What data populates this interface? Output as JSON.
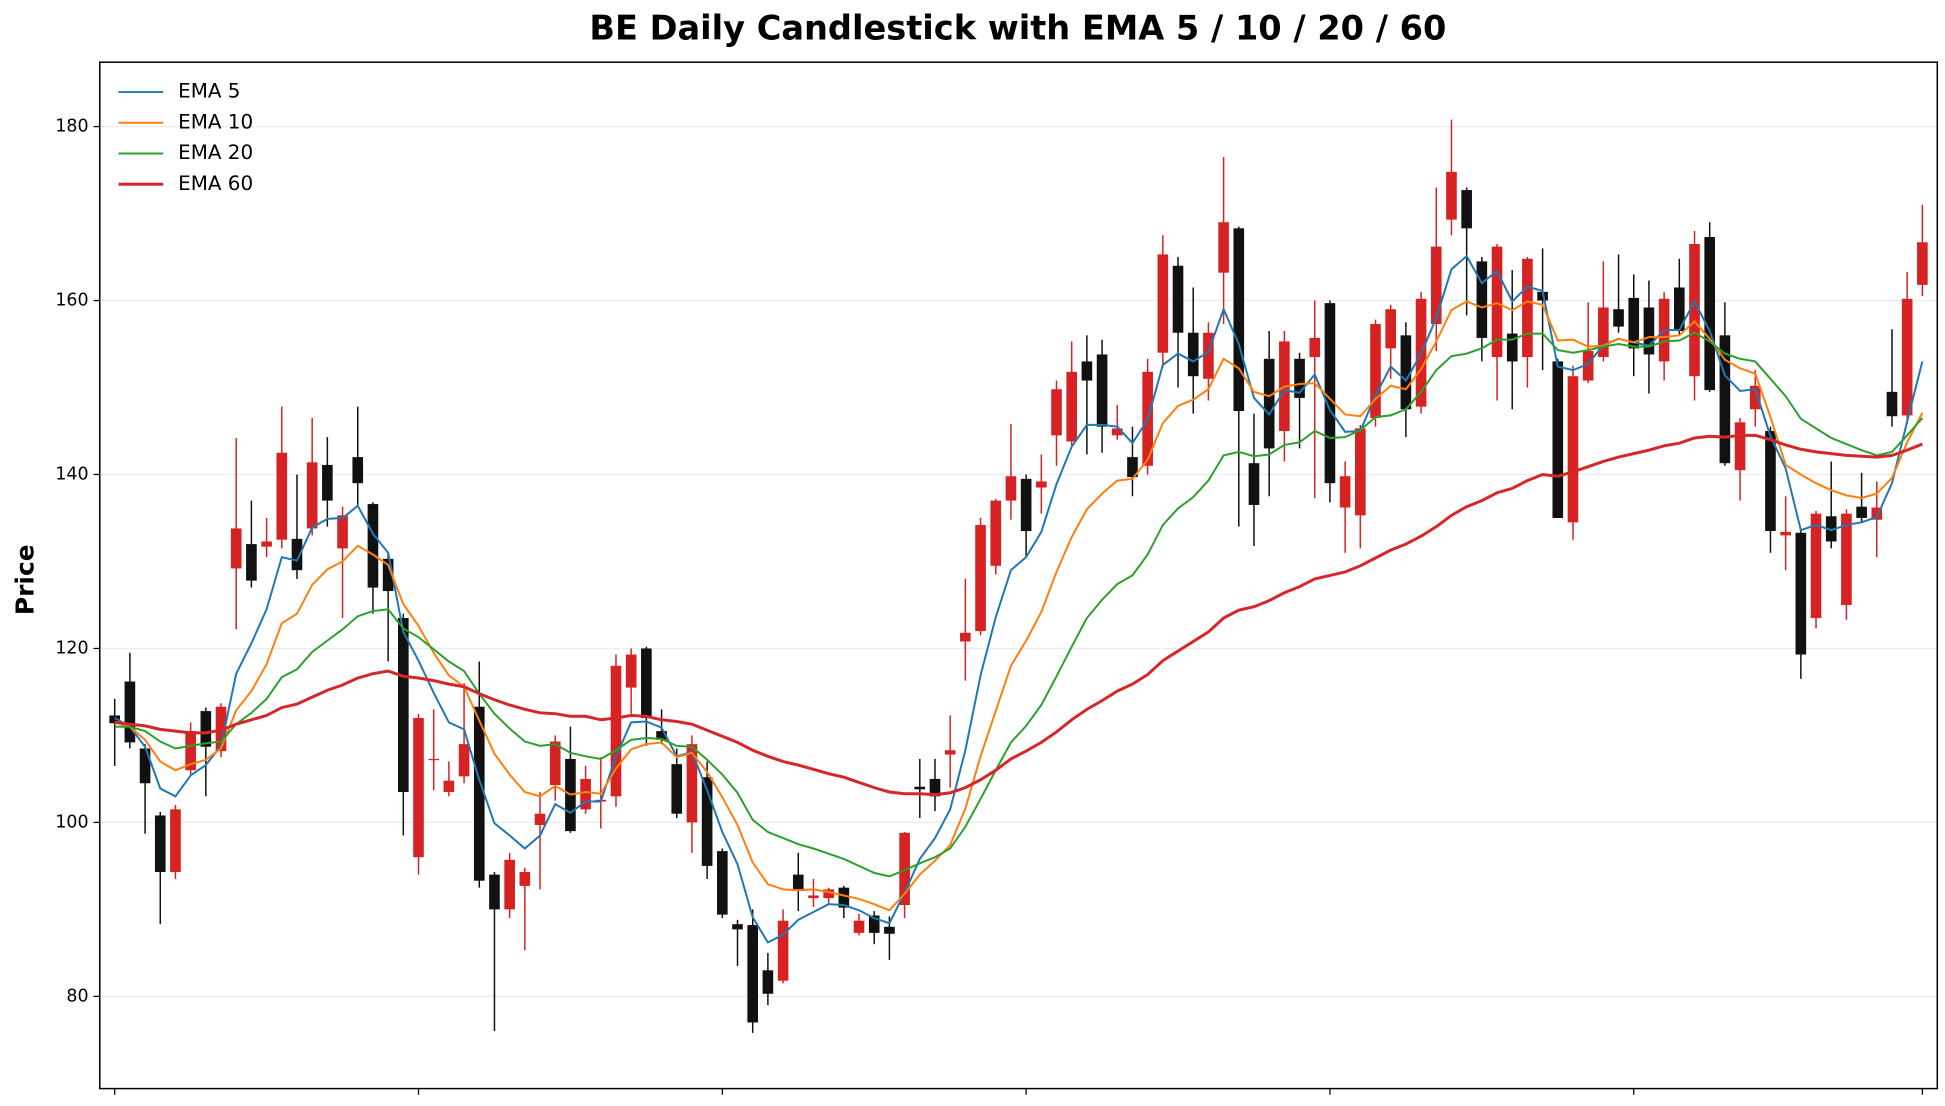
{
  "chart_data": {
    "type": "candlestick",
    "title": "BE Daily Candlestick with EMA 5 / 10 / 20 / 60",
    "ylabel": "Price",
    "ylim": [
      69.4,
      187.4
    ],
    "yticks": [
      80,
      100,
      120,
      140,
      160,
      180
    ],
    "grid": true,
    "legend": "upper left",
    "up_color": "#d62222",
    "down_color": "#111111",
    "open": [
      112.3,
      116.2,
      108.5,
      100.8,
      94.3,
      106,
      112.8,
      108.2,
      129.2,
      132,
      131.7,
      132.5,
      132.6,
      133.8,
      141.1,
      131.5,
      142,
      136.6,
      130.3,
      123.5,
      96,
      107.2,
      103.5,
      105.3,
      113.3,
      94,
      90,
      92.7,
      99.7,
      104.3,
      107.3,
      101.5,
      102.4,
      103,
      115.5,
      120,
      110.5,
      106.7,
      100,
      105.2,
      96.7,
      88.3,
      88.2,
      83,
      81.8,
      94,
      91.3,
      91.3,
      92.5,
      87.3,
      89.3,
      88,
      90.5,
      104.1,
      105,
      107.8,
      120.8,
      122,
      129.5,
      137,
      139.5,
      138.5,
      144.5,
      143.8,
      153,
      153.8,
      144.5,
      142,
      141,
      154,
      164,
      156.3,
      151,
      163.2,
      168.3,
      141.3,
      153.3,
      145,
      153.3,
      153.5,
      159.7,
      136.2,
      135.3,
      146.5,
      154.5,
      156,
      147.8,
      157.3,
      169.3,
      172.7,
      164.5,
      153.5,
      156.2,
      153.5,
      161,
      153,
      134.5,
      150.8,
      153.5,
      159,
      160.3,
      159.2,
      153,
      161.5,
      151.3,
      167.3,
      156,
      140.5,
      147.5,
      145,
      133,
      133.3,
      123.5,
      135.2,
      125,
      136.3,
      134.8,
      149.5,
      146.8,
      161.8
    ],
    "high": [
      114.2,
      119.5,
      109,
      101.2,
      102,
      111.5,
      113.2,
      113.7,
      144.2,
      137,
      135,
      147.8,
      140,
      146.5,
      144.3,
      136.3,
      147.8,
      136.8,
      131,
      124,
      112.5,
      113,
      107,
      116,
      118.5,
      94.3,
      96.5,
      94.8,
      103.5,
      110,
      111,
      106.5,
      107.5,
      119.3,
      120,
      120.2,
      113,
      108.5,
      110,
      107,
      97,
      88.8,
      90,
      85,
      90,
      96.5,
      93.5,
      92.5,
      92.7,
      89.5,
      89.8,
      89.2,
      98.9,
      107.3,
      107.3,
      112.3,
      128,
      135,
      137.2,
      145.8,
      140,
      142.3,
      150.8,
      155.3,
      156,
      155.5,
      148,
      145.5,
      153.3,
      167.5,
      165,
      161.5,
      157.5,
      176.5,
      168.5,
      147,
      156.5,
      156.5,
      154,
      160,
      160,
      141.5,
      145.7,
      157.8,
      159.5,
      157.5,
      161,
      173,
      180.8,
      173,
      165,
      166.5,
      163.5,
      165,
      166,
      153.3,
      152.5,
      159.8,
      164.5,
      165.3,
      163,
      162.3,
      161,
      164.8,
      168,
      169,
      159.8,
      146.5,
      152,
      145.5,
      137.5,
      133.5,
      135.8,
      141.5,
      136,
      140.2,
      139.2,
      156.7,
      163.3,
      171
    ],
    "low": [
      106.5,
      108.5,
      98.7,
      88.3,
      93.5,
      105.5,
      103,
      107.5,
      122.2,
      127,
      130.5,
      131.5,
      128,
      133,
      134,
      123.5,
      136.3,
      124,
      118.5,
      98.5,
      94,
      103.7,
      103,
      104.5,
      92.5,
      76,
      89,
      85.3,
      92.3,
      102.5,
      98.8,
      101,
      99.3,
      101.8,
      112.5,
      108.8,
      109,
      100.5,
      96.5,
      93.5,
      89,
      83.5,
      75.8,
      79,
      81.5,
      89.8,
      90.3,
      90.7,
      89,
      87,
      86,
      84.2,
      89,
      100.5,
      101.3,
      104,
      116.3,
      121.5,
      128.5,
      134.8,
      130.5,
      135.5,
      141,
      143.3,
      142.3,
      142.5,
      144,
      137.5,
      140,
      152.3,
      150,
      147,
      148.5,
      157.3,
      134,
      131.8,
      137.5,
      141.5,
      143,
      137.3,
      136.8,
      131,
      131.5,
      145.5,
      151,
      144.3,
      147,
      154.2,
      167.5,
      158.3,
      153,
      148.5,
      147.5,
      150,
      152,
      135,
      132.5,
      150.5,
      153,
      156.3,
      151.3,
      149.3,
      150.8,
      156,
      148.5,
      149.5,
      141,
      137,
      145.5,
      131,
      129,
      116.5,
      122.3,
      131.5,
      123.3,
      134.5,
      130.5,
      145.5,
      145.8,
      160.5
    ],
    "close": [
      111.4,
      109.2,
      104.5,
      94.3,
      101.5,
      110.5,
      108.7,
      113.3,
      133.8,
      127.8,
      132.3,
      142.5,
      129,
      141.4,
      137,
      135.3,
      139,
      127,
      126.6,
      103.5,
      112,
      107.3,
      104.8,
      109,
      93.3,
      90,
      95.7,
      94.3,
      101,
      109.3,
      99,
      105,
      102.6,
      118,
      119.3,
      112,
      109.5,
      101,
      109,
      95,
      89.4,
      87.7,
      77,
      80.3,
      88.7,
      92.3,
      91.6,
      92.3,
      90.2,
      88.7,
      87.3,
      87.2,
      98.8,
      103.8,
      103,
      108.3,
      121.8,
      134.2,
      137,
      139.8,
      133.5,
      139.2,
      149.8,
      151.8,
      150.8,
      145.5,
      145.3,
      139.7,
      151.8,
      165.3,
      156.3,
      151.3,
      156.3,
      169,
      147.3,
      136.5,
      143,
      155.3,
      148.8,
      155.7,
      139,
      139.8,
      145.3,
      157.3,
      159,
      147.5,
      160.2,
      166.2,
      174.8,
      168.3,
      155.7,
      166.2,
      153,
      164.8,
      160,
      135,
      151.3,
      154.2,
      159.2,
      157,
      154.5,
      153.8,
      160.2,
      156.5,
      166.5,
      149.7,
      141.3,
      146,
      150.2,
      133.5,
      133.4,
      119.3,
      135.5,
      132.3,
      135.5,
      135,
      136.2,
      146.7,
      160.2,
      166.7
    ],
    "series": [
      {
        "name": "EMA 5",
        "color": "#1f77b4",
        "values": [
          112,
          111,
          108.7,
          103.9,
          103,
          105.4,
          106.6,
          108.8,
          117.1,
          120.6,
          124.5,
          130.5,
          130.1,
          133.9,
          134.9,
          135,
          136.4,
          133.2,
          131,
          121.9,
          118.6,
          114.9,
          111.5,
          110.7,
          104.9,
          99.9,
          98.5,
          97,
          98.5,
          102.1,
          101.1,
          102.4,
          102.4,
          107.6,
          111.5,
          111.6,
          110.9,
          107.6,
          108.1,
          103.7,
          98.9,
          95.2,
          89.1,
          86.2,
          87.1,
          88.8,
          89.7,
          90.6,
          90.5,
          89.9,
          89,
          88.4,
          91.9,
          95.8,
          98.2,
          101.5,
          108.3,
          116.9,
          123.6,
          129,
          130.5,
          133.4,
          138.9,
          143.2,
          145.7,
          145.7,
          145.5,
          143.6,
          146.3,
          152.6,
          153.9,
          153,
          154.1,
          159,
          155,
          148.8,
          146.9,
          149.7,
          149.4,
          151.5,
          147.4,
          144.9,
          145,
          149.1,
          152.4,
          150.8,
          153.9,
          158,
          163.6,
          165.1,
          162,
          163.4,
          159.9,
          161.6,
          161.1,
          152.4,
          152,
          152.7,
          154.9,
          155.6,
          155.2,
          154.8,
          156.6,
          156.6,
          159.9,
          156.5,
          151.4,
          149.6,
          149.8,
          144.4,
          140.7,
          133.6,
          134.2,
          133.6,
          134.2,
          134.5,
          135.1,
          139,
          146.1,
          153
        ]
      },
      {
        "name": "EMA 10",
        "color": "#ff7f0e",
        "values": [
          111.5,
          111,
          109.5,
          107,
          106,
          106.7,
          107.2,
          108.5,
          112.9,
          115.1,
          118.2,
          122.9,
          124,
          127.3,
          129.1,
          130,
          131.8,
          130.8,
          129.6,
          125.1,
          122.6,
          119.5,
          116.9,
          115.6,
          111.7,
          107.9,
          105.5,
          103.5,
          103,
          104.2,
          103.2,
          103.5,
          103.3,
          106.2,
          108.4,
          109,
          109.2,
          107.5,
          108,
          105.8,
          102.9,
          99.7,
          95.4,
          92.9,
          92.3,
          92.2,
          92.3,
          92,
          91.6,
          91.2,
          90.6,
          89.9,
          91.8,
          94,
          95.6,
          97.4,
          101.6,
          107.6,
          112.8,
          118,
          120.9,
          124.2,
          128.8,
          132.8,
          136,
          137.8,
          139.3,
          139.5,
          141.7,
          145.9,
          147.9,
          148.6,
          149.8,
          153.3,
          152.2,
          149.5,
          149,
          150.1,
          150.4,
          150.5,
          148.7,
          146.9,
          146.7,
          148.7,
          150.2,
          149.8,
          152.1,
          155.3,
          158.9,
          159.9,
          159.2,
          159.7,
          158.9,
          159.9,
          159.5,
          155.4,
          155.5,
          154.7,
          154.8,
          155.6,
          155.2,
          155.8,
          155.8,
          156,
          157.6,
          155.6,
          153.2,
          152.2,
          151.6,
          146.6,
          141.1,
          140,
          139,
          138.2,
          137.6,
          137.3,
          137.8,
          139.6,
          143.7,
          147.1
        ]
      },
      {
        "name": "EMA 20",
        "color": "#2ca02c",
        "values": [
          111,
          111,
          110.5,
          109.3,
          108.5,
          108.8,
          109.1,
          109.3,
          111.3,
          112.6,
          114.2,
          116.7,
          117.6,
          119.6,
          120.9,
          122.2,
          123.7,
          124.3,
          124.5,
          122.3,
          121.3,
          119.9,
          118.5,
          117.4,
          114.8,
          112.5,
          110.8,
          109.3,
          108.8,
          109,
          108,
          107.6,
          107.3,
          108.3,
          109.5,
          109.7,
          109.6,
          108.8,
          108.7,
          107.2,
          105.5,
          103.4,
          100.3,
          98.9,
          98.2,
          97.5,
          97,
          96.4,
          95.8,
          95,
          94.2,
          93.8,
          94.5,
          95.3,
          96,
          97,
          99.5,
          102.7,
          106,
          109.2,
          111.1,
          113.5,
          116.8,
          120.2,
          123.5,
          125.6,
          127.4,
          128.4,
          130.8,
          134.2,
          136.1,
          137.4,
          139.3,
          142.2,
          142.6,
          142.1,
          142.3,
          143.4,
          143.7,
          145,
          144.2,
          144.3,
          145.1,
          146.6,
          146.8,
          147.5,
          149.5,
          152,
          153.6,
          153.9,
          154.5,
          155.5,
          155.5,
          156.2,
          156.2,
          154.3,
          154,
          154.3,
          154.7,
          155,
          154.7,
          154.7,
          155.3,
          155.4,
          156.3,
          155.3,
          153.9,
          153.3,
          153,
          151,
          149,
          146.4,
          145.3,
          144.2,
          143.5,
          142.8,
          142.2,
          142.6,
          144.5,
          146.5
        ]
      },
      {
        "name": "EMA 60",
        "color": "#d62728",
        "values": [
          111.5,
          111.3,
          111.1,
          110.7,
          110.5,
          110.3,
          110.3,
          110.6,
          111.3,
          111.8,
          112.3,
          113.2,
          113.6,
          114.4,
          115.2,
          115.8,
          116.6,
          117.1,
          117.4,
          116.8,
          116.6,
          116.3,
          115.9,
          115.6,
          114.8,
          114.1,
          113.5,
          113,
          112.6,
          112.5,
          112.2,
          112.2,
          111.8,
          112,
          112.3,
          112.2,
          111.8,
          111.6,
          111.3,
          110.6,
          109.9,
          109.2,
          108.3,
          107.6,
          107,
          106.6,
          106.1,
          105.6,
          105.2,
          104.6,
          104,
          103.5,
          103.3,
          103.3,
          103.2,
          103.4,
          104,
          104.9,
          106,
          107.3,
          108.2,
          109.2,
          110.4,
          111.8,
          113,
          114,
          115.1,
          115.9,
          117,
          118.6,
          119.7,
          120.8,
          121.9,
          123.5,
          124.4,
          124.8,
          125.5,
          126.4,
          127.1,
          128,
          128.4,
          128.8,
          129.5,
          130.4,
          131.3,
          132,
          132.9,
          134,
          135.3,
          136.3,
          137,
          137.9,
          138.4,
          139.3,
          140,
          139.8,
          140.3,
          140.9,
          141.5,
          142,
          142.4,
          142.8,
          143.3,
          143.6,
          144.2,
          144.4,
          144.3,
          144.5,
          144.5,
          144,
          143.4,
          142.9,
          142.6,
          142.4,
          142.2,
          142.1,
          142,
          142.2,
          142.8,
          143.5
        ]
      }
    ]
  }
}
